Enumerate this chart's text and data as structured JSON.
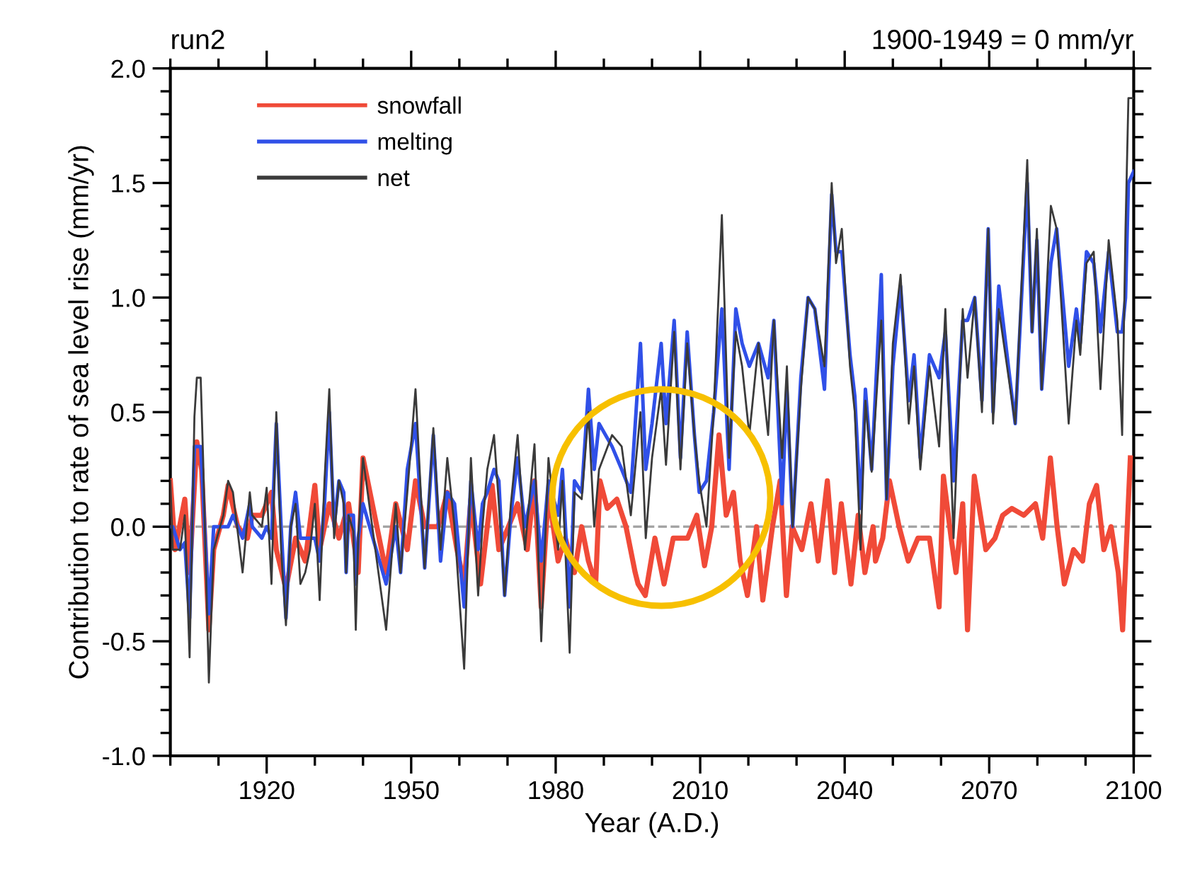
{
  "chart_data": {
    "type": "line",
    "xlabel": "Year (A.D.)",
    "ylabel": "Contribution to rate of sea level rise (mm/yr)",
    "annotations": [
      "run2",
      "1900-1949 = 0 mm/yr"
    ],
    "xlim": [
      1900,
      2100
    ],
    "xticks": [
      1920,
      1950,
      1980,
      2010,
      2040,
      2070,
      2100
    ],
    "ylim": [
      -1.0,
      2.0
    ],
    "yticks": [
      {
        "value": -1.0,
        "label": "-1.0"
      },
      {
        "value": -0.5,
        "label": "-0.5"
      },
      {
        "value": 0.0,
        "label": "0.0"
      },
      {
        "value": 0.5,
        "label": "0.5"
      },
      {
        "value": 1.0,
        "label": "1.0"
      },
      {
        "value": 1.5,
        "label": "1.5"
      },
      {
        "value": 2.0,
        "label": "2.0"
      }
    ],
    "grid": false,
    "legend": "top left",
    "line_style": "solid",
    "ref_lines": [
      {
        "axis": "y",
        "value": 0,
        "color": "#a0a0a0",
        "line_style": "dashed"
      }
    ],
    "series": [
      {
        "name": "snowfall",
        "color": "#f04a38",
        "x": [
          1900,
          1901,
          1903,
          1904,
          1905.5,
          1906.5,
          1908,
          1909,
          1911,
          1912,
          1914,
          1916,
          1917,
          1919,
          1921,
          1922,
          1924,
          1926,
          1928,
          1930,
          1931,
          1933,
          1935,
          1937,
          1939,
          1940,
          1944.8,
          1946.8,
          1949.2,
          1950.9,
          1952.8,
          1955.6,
          1957.5,
          1959.5,
          1961,
          1962.4,
          1964.4,
          1966.8,
          1968.2,
          1970.2,
          1972.1,
          1974.1,
          1975.6,
          1977,
          1978.5,
          1980.5,
          1982,
          1983.9,
          1985.4,
          1986.8,
          1988.3,
          1989.2,
          1990.7,
          1992.7,
          1994.6,
          1996.5,
          1997.1,
          1998.6,
          2000.6,
          2002.5,
          2004.4,
          2005.9,
          2007.4,
          2009.3,
          2010.9,
          2012.4,
          2013.9,
          2015.4,
          2016.9,
          2018.3,
          2019.8,
          2021.7,
          2023,
          2025,
          2026.6,
          2027.9,
          2029.1,
          2031.1,
          2033,
          2034.5,
          2036.4,
          2037.9,
          2039.3,
          2041.3,
          2042.8,
          2044.2,
          2045.9,
          2046.4,
          2047.9,
          2049.3,
          2051.3,
          2053.2,
          2055.2,
          2057.6,
          2059.6,
          2060.5,
          2062.1,
          2063.1,
          2064.5,
          2065.5,
          2066.9,
          2069.3,
          2071.2,
          2072.8,
          2074.7,
          2077.2,
          2079.6,
          2081.1,
          2082.7,
          2084.1,
          2085.6,
          2087.5,
          2089.4,
          2090.8,
          2092.3,
          2093.8,
          2095.3,
          2096.8,
          2097.7,
          2099.3
        ],
        "values": [
          0.2,
          -0.1,
          0.12,
          -0.2,
          0.37,
          0.25,
          -0.45,
          -0.1,
          0.05,
          0.18,
          0.0,
          -0.05,
          0.05,
          0.05,
          0.15,
          -0.1,
          -0.27,
          -0.05,
          -0.15,
          0.18,
          -0.1,
          0.1,
          -0.05,
          0.1,
          -0.2,
          0.3,
          -0.2,
          0.1,
          -0.1,
          0.2,
          0.0,
          0.0,
          0.15,
          -0.1,
          -0.25,
          0.12,
          -0.25,
          0.18,
          -0.1,
          0.0,
          0.1,
          -0.1,
          0.2,
          -0.35,
          0.15,
          -0.15,
          -0.05,
          -0.2,
          0.0,
          -0.15,
          -0.25,
          0.2,
          0.08,
          0.12,
          0.0,
          -0.2,
          -0.25,
          -0.3,
          -0.05,
          -0.25,
          -0.05,
          -0.05,
          -0.05,
          0.05,
          -0.17,
          0.0,
          0.4,
          0.05,
          0.15,
          -0.15,
          -0.3,
          0.0,
          -0.32,
          0.0,
          0.2,
          -0.3,
          0.0,
          -0.1,
          0.1,
          -0.15,
          0.2,
          -0.2,
          0.1,
          -0.25,
          0.05,
          -0.2,
          0.0,
          -0.15,
          -0.05,
          0.2,
          0.0,
          -0.15,
          -0.05,
          -0.05,
          -0.35,
          0.22,
          -0.05,
          -0.2,
          0.1,
          -0.45,
          0.22,
          -0.1,
          -0.05,
          0.05,
          0.08,
          0.05,
          0.1,
          -0.05,
          0.3,
          0.0,
          -0.25,
          -0.1,
          -0.15,
          0.1,
          0.18,
          -0.1,
          0.0,
          -0.2,
          -0.45,
          0.3
        ]
      },
      {
        "name": "melting",
        "color": "#3050e8",
        "x": [
          1900,
          1900.5,
          1902,
          1903,
          1904,
          1905,
          1905.5,
          1906.3,
          1906.8,
          1908,
          1909,
          1911,
          1912,
          1913,
          1915,
          1916.5,
          1917,
          1919,
          1920,
          1921,
          1922,
          1923,
          1924,
          1925,
          1926,
          1927,
          1928,
          1929,
          1930,
          1931,
          1932,
          1933,
          1934,
          1935,
          1936,
          1936.5,
          1937,
          1938,
          1938.5,
          1939,
          1940,
          1944.8,
          1946.8,
          1947.8,
          1949.2,
          1950.9,
          1952.8,
          1954.6,
          1956.1,
          1957.5,
          1959,
          1961,
          1962.4,
          1963.9,
          1964.8,
          1965.8,
          1967.2,
          1968.2,
          1969.4,
          1970.7,
          1972.1,
          1973.6,
          1975.6,
          1977,
          1978.5,
          1980.5,
          1981.4,
          1982.9,
          1983.9,
          1985.4,
          1986.8,
          1988,
          1989,
          1991.7,
          1993.7,
          1995.6,
          1997.6,
          1998.7,
          2000,
          2001.9,
          2002.9,
          2004.6,
          2005.9,
          2007.3,
          2008.8,
          2009.8,
          2011.3,
          2012.8,
          2014.5,
          2016,
          2017.4,
          2018.7,
          2020.2,
          2022.1,
          2024.1,
          2025.3,
          2027,
          2028,
          2029.2,
          2030.9,
          2032.4,
          2033.8,
          2035.8,
          2037.3,
          2038.2,
          2039.4,
          2041.1,
          2042.1,
          2043.3,
          2044.3,
          2045.6,
          2047.6,
          2048.7,
          2050,
          2051.6,
          2053.3,
          2054.4,
          2055.7,
          2057.6,
          2059.6,
          2060.9,
          2062.6,
          2064.5,
          2065.5,
          2067,
          2068.5,
          2069.8,
          2070.8,
          2072,
          2075.4,
          2077.9,
          2078.9,
          2079.9,
          2080.9,
          2082.8,
          2084,
          2086.5,
          2088.1,
          2088.9,
          2090.2,
          2091.7,
          2093.1,
          2094.8,
          2096.6,
          2097.6,
          2098.3,
          2098.9,
          2100
        ],
        "values": [
          0.0,
          0.0,
          -0.1,
          -0.07,
          -0.4,
          0.35,
          0.35,
          0.35,
          0.15,
          -0.38,
          0.0,
          0.0,
          0.0,
          0.05,
          -0.05,
          0.1,
          0.0,
          -0.05,
          0.0,
          -0.05,
          0.45,
          0.0,
          -0.4,
          0.0,
          0.15,
          -0.05,
          -0.05,
          -0.05,
          -0.05,
          -0.15,
          0.1,
          0.5,
          0.0,
          0.2,
          0.15,
          -0.2,
          0.05,
          0.05,
          -0.25,
          -0.05,
          0.1,
          -0.25,
          0.0,
          -0.2,
          0.25,
          0.45,
          -0.18,
          0.4,
          -0.15,
          0.15,
          0.1,
          -0.35,
          0.2,
          -0.1,
          0.1,
          0.15,
          0.25,
          0.2,
          -0.3,
          0.05,
          0.3,
          0.0,
          0.2,
          -0.15,
          0.2,
          0.05,
          0.25,
          -0.35,
          0.2,
          0.15,
          0.6,
          0.25,
          0.45,
          0.35,
          0.25,
          0.15,
          0.8,
          0.25,
          0.45,
          0.8,
          0.45,
          0.9,
          0.3,
          0.85,
          0.4,
          0.15,
          0.2,
          0.5,
          0.95,
          0.25,
          0.95,
          0.8,
          0.7,
          0.8,
          0.65,
          0.9,
          0.1,
          0.6,
          0.0,
          0.65,
          1.0,
          0.95,
          0.6,
          1.45,
          1.2,
          1.2,
          0.75,
          0.57,
          0.08,
          0.6,
          0.25,
          1.1,
          0.12,
          0.7,
          1.05,
          0.55,
          0.75,
          0.3,
          0.75,
          0.65,
          0.85,
          0.2,
          0.9,
          0.9,
          1.0,
          0.55,
          1.3,
          0.5,
          1.05,
          0.45,
          1.5,
          0.85,
          1.25,
          0.6,
          1.15,
          1.3,
          0.7,
          0.95,
          0.8,
          1.2,
          1.15,
          0.85,
          1.2,
          0.85,
          0.85,
          1.0,
          1.5,
          1.55
        ]
      },
      {
        "name": "net",
        "color": "#3a3a3a",
        "x": [
          1900,
          1900.5,
          1902,
          1903,
          1904,
          1905,
          1905.5,
          1906.3,
          1906.8,
          1908,
          1909,
          1911,
          1912,
          1913,
          1915,
          1916.5,
          1917,
          1919,
          1920,
          1921,
          1922,
          1923,
          1924,
          1925,
          1926,
          1927,
          1928,
          1929,
          1930,
          1931,
          1932,
          1933,
          1934,
          1935,
          1936,
          1936.5,
          1937,
          1938,
          1938.5,
          1939,
          1940,
          1944.8,
          1946.8,
          1947.8,
          1949.2,
          1950.9,
          1952.8,
          1954.6,
          1956.1,
          1957.5,
          1959,
          1961,
          1962.4,
          1963.9,
          1964.8,
          1965.8,
          1967.2,
          1968.2,
          1969.4,
          1970.7,
          1972.1,
          1973.6,
          1975.6,
          1977,
          1978.5,
          1980.5,
          1981.4,
          1982.9,
          1983.9,
          1985.4,
          1986.8,
          1988,
          1989,
          1991.7,
          1993.7,
          1995.6,
          1997.6,
          1998.7,
          2000,
          2001.9,
          2002.9,
          2004.6,
          2005.9,
          2007.3,
          2008.8,
          2009.8,
          2011.3,
          2012.8,
          2014.5,
          2016,
          2017.4,
          2018.7,
          2020.2,
          2022.1,
          2024.1,
          2025.3,
          2027,
          2028,
          2029.2,
          2030.9,
          2032.4,
          2033.8,
          2035.8,
          2037.3,
          2038.2,
          2039.4,
          2041.1,
          2042.1,
          2043.3,
          2044.3,
          2045.6,
          2047.6,
          2048.7,
          2050,
          2051.6,
          2053.3,
          2054.4,
          2055.7,
          2057.6,
          2059.6,
          2060.9,
          2062.6,
          2064.5,
          2065.5,
          2067,
          2068.5,
          2069.8,
          2070.8,
          2072,
          2075.4,
          2077.9,
          2078.9,
          2079.9,
          2080.9,
          2082.8,
          2084,
          2086.5,
          2088.1,
          2088.9,
          2090.2,
          2091.7,
          2093.1,
          2094.8,
          2096.6,
          2097.6,
          2098.3,
          2098.9,
          2100
        ],
        "values": [
          0.2,
          -0.1,
          -0.1,
          0.05,
          -0.57,
          0.48,
          0.65,
          0.65,
          0.3,
          -0.68,
          -0.1,
          0.05,
          0.2,
          0.15,
          -0.2,
          0.15,
          0.05,
          0.0,
          0.17,
          -0.25,
          0.5,
          -0.1,
          -0.43,
          0.0,
          0.1,
          -0.25,
          -0.2,
          -0.1,
          0.1,
          -0.32,
          0.2,
          0.6,
          -0.05,
          0.2,
          0.1,
          -0.2,
          0.05,
          -0.02,
          -0.45,
          -0.05,
          0.3,
          -0.45,
          0.1,
          -0.2,
          0.15,
          0.6,
          -0.18,
          0.43,
          -0.1,
          0.3,
          0.0,
          -0.62,
          0.3,
          -0.3,
          0.0,
          0.25,
          0.4,
          0.1,
          -0.3,
          0.1,
          0.4,
          -0.1,
          0.36,
          -0.5,
          0.3,
          -0.1,
          0.2,
          -0.55,
          0.15,
          0.12,
          0.5,
          0.0,
          0.25,
          0.4,
          0.35,
          0.05,
          0.5,
          -0.05,
          0.3,
          0.6,
          0.27,
          0.85,
          0.25,
          0.8,
          0.4,
          0.2,
          0.0,
          0.5,
          1.36,
          0.3,
          0.85,
          0.7,
          0.4,
          0.8,
          0.4,
          0.9,
          0.3,
          0.7,
          0.0,
          0.6,
          1.0,
          0.95,
          0.7,
          1.5,
          1.15,
          1.3,
          0.7,
          0.5,
          -0.1,
          0.55,
          0.24,
          0.9,
          0.12,
          0.8,
          1.1,
          0.45,
          0.7,
          0.25,
          0.7,
          0.35,
          0.95,
          -0.05,
          0.95,
          0.65,
          1.0,
          0.5,
          1.3,
          0.45,
          0.95,
          0.45,
          1.6,
          0.85,
          1.3,
          0.6,
          1.4,
          1.3,
          0.45,
          0.9,
          0.75,
          1.15,
          1.2,
          0.6,
          1.25,
          0.9,
          0.4,
          1.3,
          1.87,
          1.87
        ]
      }
    ]
  }
}
